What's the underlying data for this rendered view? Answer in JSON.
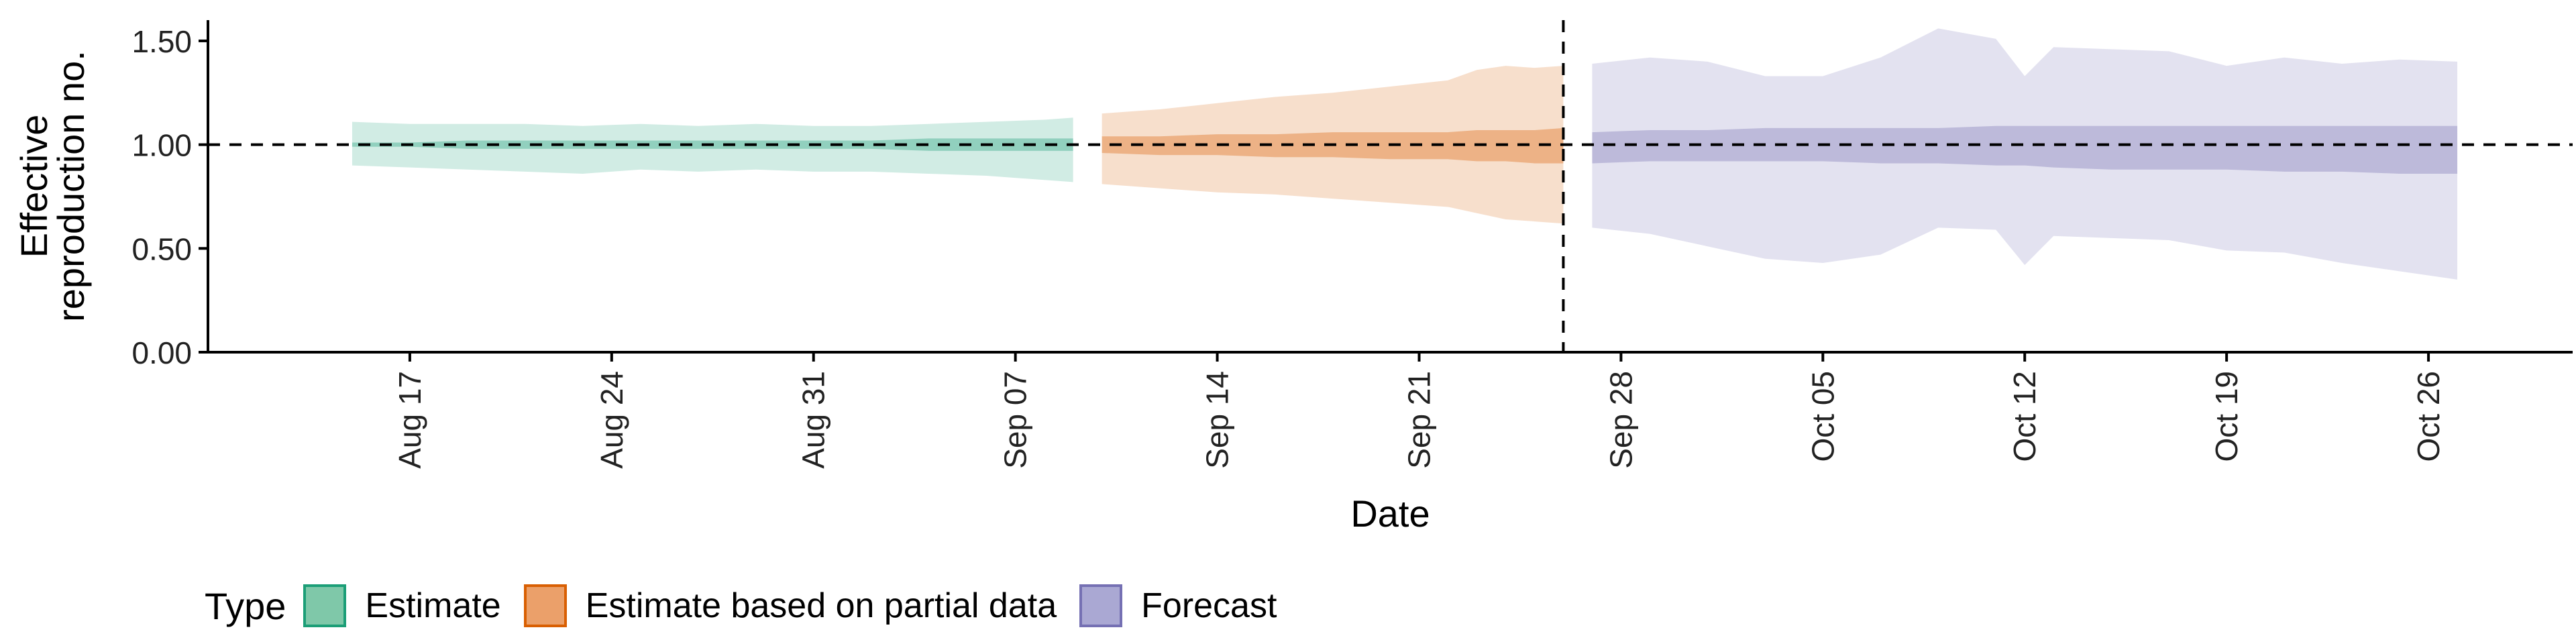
{
  "chart_data": {
    "type": "area",
    "xlabel": "Date",
    "ylabel_lines": [
      "Effective",
      "reproduction no."
    ],
    "ylim": [
      0,
      1.6
    ],
    "yticks": [
      0,
      0.5,
      1.0,
      1.5
    ],
    "ytick_labels": [
      "0.00",
      "0.50",
      "1.00",
      "1.50"
    ],
    "xlim": [
      "2020-08-10",
      "2020-10-31"
    ],
    "xticks": [
      "2020-08-17",
      "2020-08-24",
      "2020-08-31",
      "2020-09-07",
      "2020-09-14",
      "2020-09-21",
      "2020-09-28",
      "2020-10-05",
      "2020-10-12",
      "2020-10-19",
      "2020-10-26"
    ],
    "xtick_labels": [
      "Aug 17",
      "Aug 24",
      "Aug 31",
      "Sep 07",
      "Sep 14",
      "Sep 21",
      "Sep 28",
      "Oct 05",
      "Oct 12",
      "Oct 19",
      "Oct 26"
    ],
    "reference_hline": 1.0,
    "reference_vline": "2020-09-26",
    "grid": false,
    "legend": {
      "title": "Type",
      "position": "bottom-left",
      "items": [
        {
          "label": "Estimate",
          "fill": "#7fc8a9",
          "stroke": "#1b9e77"
        },
        {
          "label": "Estimate based on partial data",
          "fill": "#eba06a",
          "stroke": "#d95f02"
        },
        {
          "label": "Forecast",
          "fill": "#aaa8d3",
          "stroke": "#7570b3"
        }
      ]
    },
    "series": [
      {
        "name": "Estimate",
        "color": "#1b9e77",
        "x": [
          "2020-08-15",
          "2020-08-17",
          "2020-08-19",
          "2020-08-21",
          "2020-08-23",
          "2020-08-25",
          "2020-08-27",
          "2020-08-29",
          "2020-08-31",
          "2020-09-02",
          "2020-09-04",
          "2020-09-06",
          "2020-09-08",
          "2020-09-09"
        ],
        "outer_lower": [
          0.9,
          0.89,
          0.88,
          0.87,
          0.86,
          0.88,
          0.87,
          0.88,
          0.87,
          0.87,
          0.86,
          0.85,
          0.83,
          0.82
        ],
        "outer_upper": [
          1.11,
          1.1,
          1.1,
          1.1,
          1.09,
          1.1,
          1.09,
          1.1,
          1.09,
          1.09,
          1.1,
          1.11,
          1.12,
          1.13
        ],
        "inner_lower": [
          0.99,
          0.99,
          0.98,
          0.98,
          0.98,
          0.98,
          0.98,
          0.98,
          0.98,
          0.98,
          0.97,
          0.97,
          0.97,
          0.97
        ],
        "inner_upper": [
          1.01,
          1.01,
          1.02,
          1.02,
          1.02,
          1.02,
          1.02,
          1.02,
          1.02,
          1.02,
          1.03,
          1.03,
          1.03,
          1.03
        ]
      },
      {
        "name": "Estimate based on partial data",
        "color": "#d95f02",
        "x": [
          "2020-09-10",
          "2020-09-12",
          "2020-09-14",
          "2020-09-16",
          "2020-09-18",
          "2020-09-20",
          "2020-09-22",
          "2020-09-23",
          "2020-09-24",
          "2020-09-25",
          "2020-09-26"
        ],
        "outer_lower": [
          0.81,
          0.79,
          0.77,
          0.76,
          0.74,
          0.72,
          0.7,
          0.67,
          0.64,
          0.63,
          0.62
        ],
        "outer_upper": [
          1.15,
          1.17,
          1.2,
          1.23,
          1.25,
          1.28,
          1.31,
          1.36,
          1.38,
          1.37,
          1.38
        ],
        "inner_lower": [
          0.96,
          0.95,
          0.95,
          0.94,
          0.94,
          0.93,
          0.93,
          0.92,
          0.92,
          0.91,
          0.91
        ],
        "inner_upper": [
          1.04,
          1.04,
          1.05,
          1.05,
          1.06,
          1.06,
          1.06,
          1.07,
          1.07,
          1.07,
          1.08
        ]
      },
      {
        "name": "Forecast",
        "color": "#7570b3",
        "x": [
          "2020-09-27",
          "2020-09-29",
          "2020-10-01",
          "2020-10-03",
          "2020-10-05",
          "2020-10-07",
          "2020-10-09",
          "2020-10-11",
          "2020-10-12",
          "2020-10-13",
          "2020-10-15",
          "2020-10-17",
          "2020-10-19",
          "2020-10-21",
          "2020-10-23",
          "2020-10-25",
          "2020-10-27"
        ],
        "outer_lower": [
          0.6,
          0.57,
          0.51,
          0.45,
          0.43,
          0.47,
          0.6,
          0.59,
          0.42,
          0.56,
          0.55,
          0.54,
          0.49,
          0.48,
          0.43,
          0.39,
          0.35
        ],
        "outer_upper": [
          1.39,
          1.42,
          1.4,
          1.33,
          1.33,
          1.42,
          1.56,
          1.51,
          1.33,
          1.47,
          1.46,
          1.45,
          1.38,
          1.42,
          1.39,
          1.41,
          1.4
        ],
        "inner_lower": [
          0.91,
          0.92,
          0.92,
          0.92,
          0.92,
          0.91,
          0.91,
          0.9,
          0.9,
          0.89,
          0.88,
          0.88,
          0.88,
          0.87,
          0.87,
          0.86,
          0.86
        ],
        "inner_upper": [
          1.06,
          1.07,
          1.07,
          1.08,
          1.08,
          1.08,
          1.08,
          1.09,
          1.09,
          1.09,
          1.09,
          1.09,
          1.09,
          1.09,
          1.09,
          1.09,
          1.09
        ]
      }
    ]
  }
}
